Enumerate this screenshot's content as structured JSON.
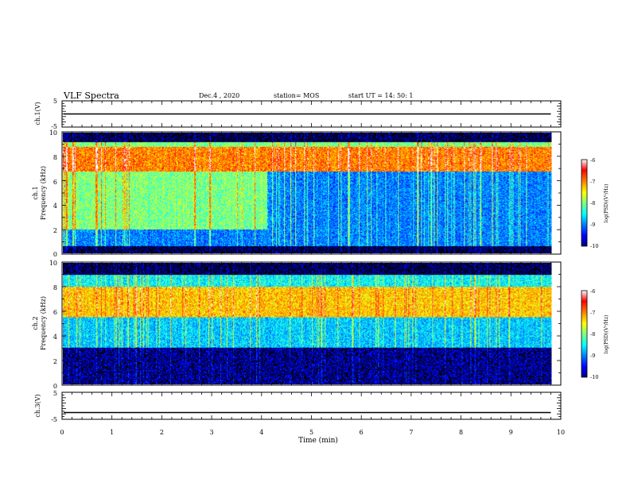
{
  "header": {
    "title": "VLF Spectra",
    "date": "Dec.4 , 2020",
    "station": "station= MOS",
    "start": "start UT = 14: 50: 1"
  },
  "colors": {
    "colormap": [
      "#000080",
      "#0000ff",
      "#0080ff",
      "#00ffff",
      "#80ff80",
      "#ffff00",
      "#ff8000",
      "#ff0000",
      "#ffffff"
    ]
  },
  "chart_data": [
    {
      "type": "line",
      "id": "ch1-waveform",
      "ylabel": "ch.1(V)",
      "ylim": [
        -5,
        5
      ],
      "yticks": [
        "5",
        "-5"
      ],
      "xlim": [
        0,
        10
      ],
      "value_level": 0
    },
    {
      "type": "heatmap",
      "id": "ch1-spectrogram",
      "ylabel_line1": "ch.1",
      "ylabel_line2": "Frequency (kHz)",
      "xlim": [
        0,
        10
      ],
      "ylim": [
        0,
        10
      ],
      "yticks": [
        "0",
        "2",
        "4",
        "6",
        "8",
        "10"
      ],
      "data_extent_x": [
        0,
        9.8
      ],
      "bands": [
        {
          "f": [
            9.2,
            10
          ],
          "level": -10
        },
        {
          "f": [
            8.8,
            9.2
          ],
          "level": -8
        },
        {
          "f": [
            6.8,
            8.8
          ],
          "level": -7
        },
        {
          "f": [
            2.0,
            6.8
          ],
          "level": -8,
          "note_time_change": 4.1,
          "level_after": -9
        },
        {
          "f": [
            0.6,
            2.0
          ],
          "level": -9
        },
        {
          "f": [
            0,
            0.6
          ],
          "level": -10
        }
      ],
      "colorbar": {
        "label": "log(PSD)(V²/Hz)",
        "ticks": [
          "-6",
          "-7",
          "-8",
          "-9",
          "-10"
        ],
        "range": [
          -10,
          -6
        ]
      }
    },
    {
      "type": "heatmap",
      "id": "ch2-spectrogram",
      "ylabel_line1": "ch.2",
      "ylabel_line2": "Frequency (kHz)",
      "xlim": [
        0,
        10
      ],
      "ylim": [
        0,
        10
      ],
      "yticks": [
        "0",
        "2",
        "4",
        "6",
        "8",
        "10"
      ],
      "data_extent_x": [
        0,
        9.8
      ],
      "bands": [
        {
          "f": [
            9.0,
            10
          ],
          "level": -10
        },
        {
          "f": [
            8.0,
            9.0
          ],
          "level": -8.5
        },
        {
          "f": [
            5.5,
            8.0
          ],
          "level": -7.3
        },
        {
          "f": [
            3.0,
            5.5
          ],
          "level": -8.7
        },
        {
          "f": [
            0,
            3.0
          ],
          "level": -9.8
        }
      ],
      "colorbar": {
        "label": "log(PSD)(V²/Hz)",
        "ticks": [
          "-6",
          "-7",
          "-8",
          "-9",
          "-10"
        ],
        "range": [
          -10,
          -6
        ]
      }
    },
    {
      "type": "line",
      "id": "ch3-waveform",
      "ylabel": "ch.3(V)",
      "ylim": [
        -5,
        5
      ],
      "yticks": [
        "5",
        "-5"
      ],
      "xlim": [
        0,
        10
      ],
      "value_level": -2.5,
      "xlabel": "Time (min)",
      "xticks": [
        "0",
        "1",
        "2",
        "3",
        "4",
        "5",
        "6",
        "7",
        "8",
        "9",
        "10"
      ]
    }
  ]
}
